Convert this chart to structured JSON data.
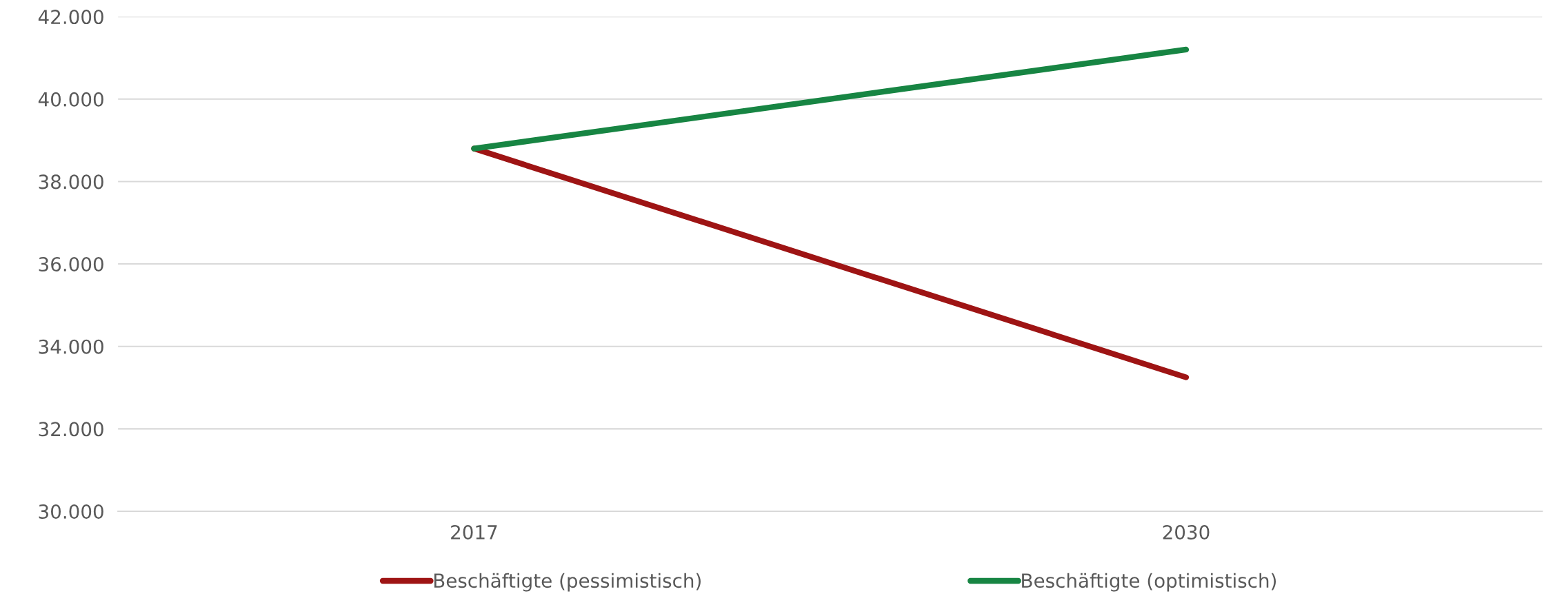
{
  "chart_data": {
    "type": "line",
    "categories": [
      "2017",
      "2030"
    ],
    "series": [
      {
        "name": "Beschäftigte (pessimistisch)",
        "color": "#9e1414",
        "values": [
          38800,
          33250
        ]
      },
      {
        "name": "Beschäftigte (optimistisch)",
        "color": "#178543",
        "values": [
          38800,
          41200
        ]
      }
    ],
    "ylim": [
      30000,
      42000
    ],
    "yticks": [
      {
        "value": 30000,
        "label": "30.000"
      },
      {
        "value": 32000,
        "label": "32.000"
      },
      {
        "value": 34000,
        "label": "34.000"
      },
      {
        "value": 36000,
        "label": "36.000"
      },
      {
        "value": 38000,
        "label": "38.000"
      },
      {
        "value": 40000,
        "label": "40.000"
      },
      {
        "value": 42000,
        "label": "42.000"
      }
    ],
    "grid": "y",
    "legend": "bottom",
    "marker": "none",
    "line_style": "solid"
  }
}
